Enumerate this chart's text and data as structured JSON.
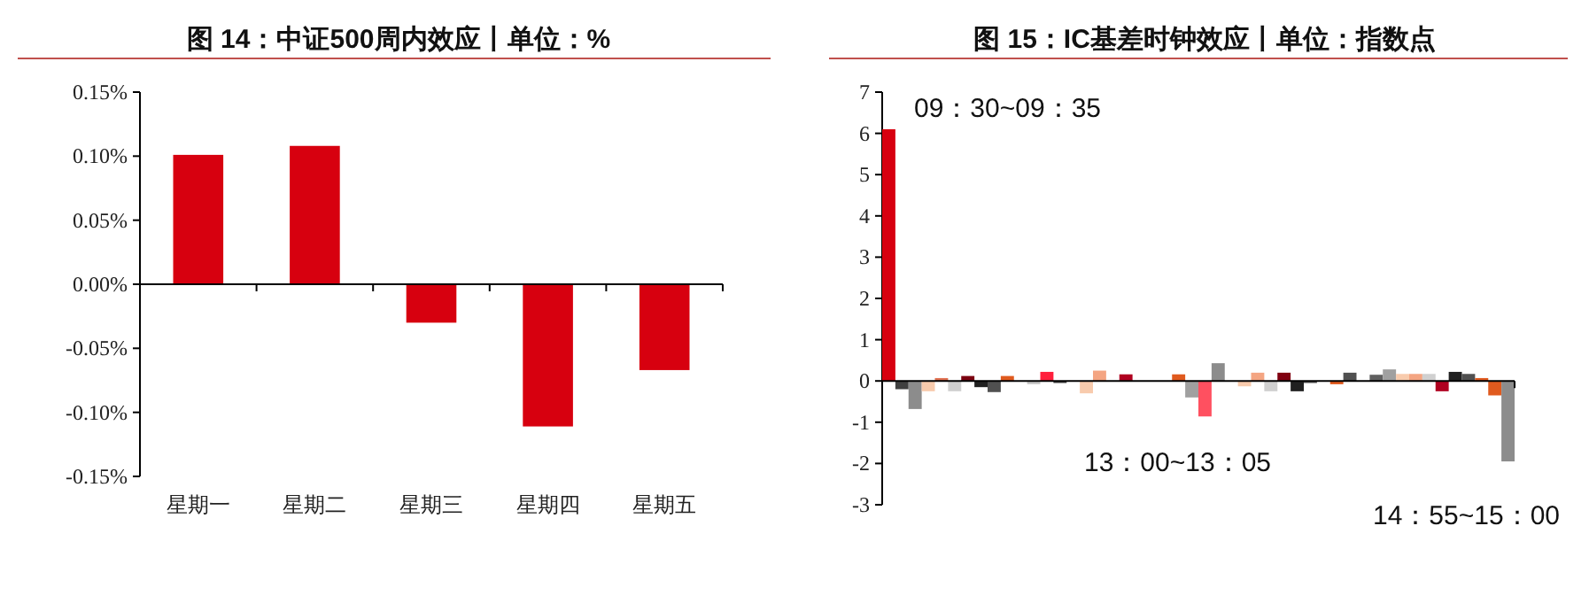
{
  "chart_data": [
    {
      "type": "bar",
      "title": "图 14：中证500周内效应丨单位：%",
      "categories": [
        "星期一",
        "星期二",
        "星期三",
        "星期四",
        "星期五"
      ],
      "values": [
        0.101,
        0.108,
        -0.03,
        -0.111,
        -0.067
      ],
      "color": "#d7000f",
      "ylim": [
        -0.15,
        0.15
      ],
      "yticks": [
        {
          "value": -0.15,
          "label": "-0.15%"
        },
        {
          "value": -0.1,
          "label": "-0.10%"
        },
        {
          "value": -0.05,
          "label": "-0.05%"
        },
        {
          "value": 0,
          "label": "0.00%"
        },
        {
          "value": 0.05,
          "label": "0.05%"
        },
        {
          "value": 0.1,
          "label": "0.10%"
        },
        {
          "value": 0.15,
          "label": "0.15%"
        }
      ]
    },
    {
      "type": "bar",
      "title": "图 15：IC基差时钟效应丨单位：指数点",
      "categories": [
        null,
        null,
        null,
        null,
        null,
        null,
        null,
        null,
        null,
        null,
        null,
        null,
        null,
        null,
        null,
        null,
        null,
        null,
        null,
        null,
        null,
        null,
        null,
        null,
        null,
        null,
        null,
        null,
        null,
        null,
        null,
        null,
        null,
        null,
        null,
        null,
        null,
        null,
        null,
        null,
        null,
        null,
        null,
        null,
        null,
        null,
        null,
        null
      ],
      "values": [
        6.1,
        -0.2,
        -0.68,
        -0.25,
        0.07,
        -0.25,
        0.12,
        -0.15,
        -0.27,
        0.12,
        0,
        -0.08,
        0.22,
        -0.05,
        null,
        -0.3,
        0.25,
        0,
        0.16,
        0,
        null,
        0,
        0.16,
        -0.4,
        -0.86,
        0.43,
        null,
        -0.13,
        0.2,
        -0.25,
        0.2,
        -0.25,
        -0.05,
        0,
        -0.08,
        0.2,
        null,
        0.15,
        0.28,
        0.17,
        0.17,
        0.17,
        -0.25,
        0.22,
        0.17,
        0.07,
        -0.35,
        -1.95
      ],
      "colors": [
        "#d7000f",
        "#404040",
        "#8c8c8c",
        "#f8cbad",
        "#e07050",
        "#d0d0d0",
        "#7b0010",
        "#202020",
        "#505050",
        "#e05a1e",
        "#f4a582",
        "#c8c8c8",
        "#ff1f3c",
        "#404040",
        null,
        "#f8cbad",
        "#f4a582",
        "#d0d0d0",
        "#b00020",
        "#202020",
        null,
        "#e05a1e",
        "#e05a1e",
        "#a0a0a0",
        "#ff5060",
        "#8c8c8c",
        null,
        "#f8cbad",
        "#f4a582",
        "#d0d0d0",
        "#800010",
        "#202020",
        "#505050",
        "#e05a1e",
        "#e05a1e",
        "#505050",
        null,
        "#606060",
        "#a0a0a0",
        "#f8cbad",
        "#f4a582",
        "#d0d0d0",
        "#b00020",
        "#202020",
        "#505050",
        "#e05a1e",
        "#e05a1e",
        "#8c8c8c"
      ],
      "ylim": [
        -3,
        7
      ],
      "yticks": [
        -3,
        -2,
        -1,
        0,
        1,
        2,
        3,
        4,
        5,
        6,
        7
      ],
      "annotations": [
        "09：30~09：35",
        "13：00~13：05",
        "14：55~15：00"
      ]
    }
  ]
}
